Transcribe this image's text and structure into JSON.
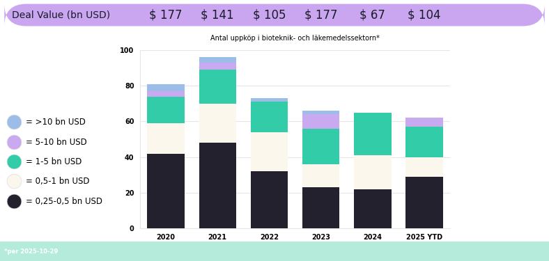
{
  "chart_data": {
    "type": "bar",
    "stacked": true,
    "title": "Antal uppköp i bioteknik- och läkemedelssektorn*",
    "categories": [
      "2020",
      "2021",
      "2022",
      "2023",
      "2024",
      "2025 YTD"
    ],
    "series": [
      {
        "name": "= 0,25-0,5 bn USD",
        "color": "#23212e",
        "values": [
          42,
          48,
          32,
          23,
          22,
          29
        ]
      },
      {
        "name": "= 0,5-1 bn USD",
        "color": "#fbf7ec",
        "values": [
          17,
          22,
          22,
          13,
          19,
          11
        ]
      },
      {
        "name": "= 1-5 bn USD",
        "color": "#33cca9",
        "values": [
          15,
          19,
          17,
          20,
          24,
          17
        ]
      },
      {
        "name": "= 5-10 bn USD",
        "color": "#c9a9f0",
        "values": [
          3,
          4,
          0,
          8,
          0,
          5
        ]
      },
      {
        "name": "= >10 bn USD",
        "color": "#9dbde9",
        "values": [
          4,
          3,
          2,
          2,
          0,
          0
        ]
      }
    ],
    "ylim": [
      0,
      100
    ],
    "yticks": [
      0,
      20,
      40,
      60,
      80,
      100
    ],
    "grid": true,
    "legend": "center left"
  },
  "header": {
    "label": "Deal Value (bn USD)",
    "values": [
      177,
      141,
      105,
      177,
      67,
      104
    ],
    "value_labels": [
      "$ 177",
      "$ 141",
      "$ 105",
      "$ 177",
      "$ 67",
      "$ 104"
    ]
  },
  "footnote": "*per 2025-10-29"
}
